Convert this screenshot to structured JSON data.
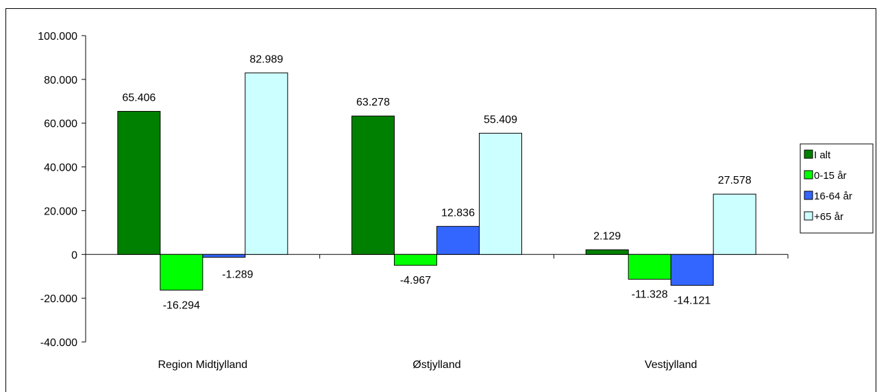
{
  "chart_data": {
    "type": "bar",
    "title": "",
    "categories": [
      "Region Midtjylland",
      "Østjylland",
      "Vestjylland"
    ],
    "series": [
      {
        "name": "I alt",
        "color": "#008000",
        "values": [
          65406,
          63278,
          2129
        ],
        "labels": [
          "65.406",
          "63.278",
          "2.129"
        ]
      },
      {
        "name": "0-15 år",
        "color": "#00ff00",
        "values": [
          -16294,
          -4967,
          -11328
        ],
        "labels": [
          "-16.294",
          "-4.967",
          "-11.328"
        ]
      },
      {
        "name": "16-64 år",
        "color": "#3366ff",
        "values": [
          -1289,
          12836,
          -14121
        ],
        "labels": [
          "-1.289",
          "12.836",
          "-14.121"
        ]
      },
      {
        "name": "+65 år",
        "color": "#ccffff",
        "values": [
          82989,
          55409,
          27578
        ],
        "labels": [
          "82.989",
          "55.409",
          "27.578"
        ]
      }
    ],
    "ylim": [
      -40000,
      100000
    ],
    "yticks": [
      -40000,
      -20000,
      0,
      20000,
      40000,
      60000,
      80000,
      100000
    ],
    "ytick_labels": [
      "-40.000",
      "-20.000",
      "0",
      "20.000",
      "40.000",
      "60.000",
      "80.000",
      "100.000"
    ],
    "xlabel": "",
    "ylabel": "",
    "grid": false,
    "legend_position": "right"
  }
}
